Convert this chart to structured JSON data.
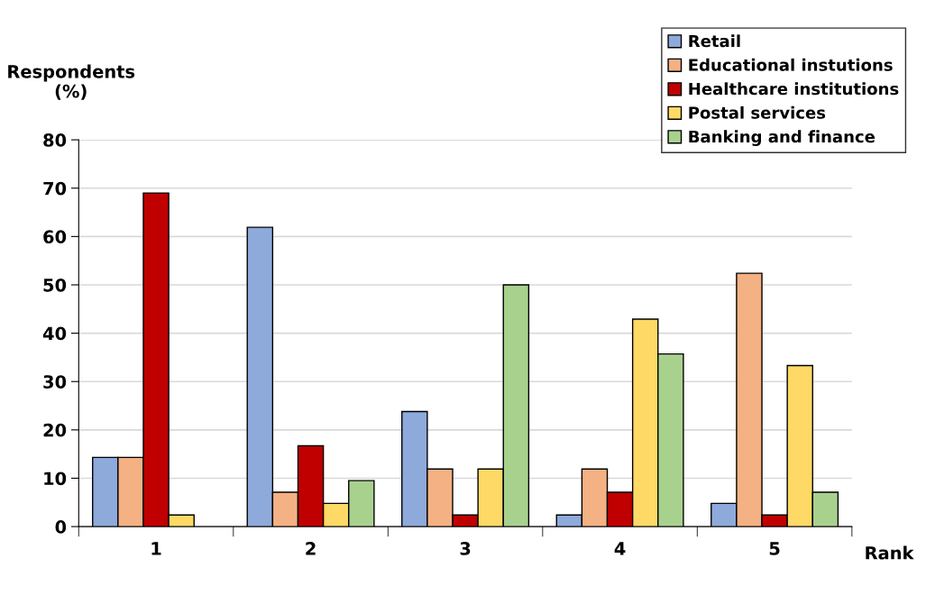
{
  "chart_data": {
    "type": "bar",
    "xlabel": "Rank",
    "ylabel": "Respondents\n(%)",
    "categories": [
      "1",
      "2",
      "3",
      "4",
      "5"
    ],
    "series": [
      {
        "name": "Retail",
        "color": "#8eaadb",
        "values": [
          14.3,
          61.9,
          23.8,
          2.4,
          4.8
        ]
      },
      {
        "name": "Educational instutions",
        "color": "#f4b183",
        "values": [
          14.3,
          7.1,
          11.9,
          11.9,
          52.4
        ]
      },
      {
        "name": "Healthcare institutions",
        "color": "#c00000",
        "values": [
          69.0,
          16.7,
          2.4,
          7.1,
          2.4
        ]
      },
      {
        "name": "Postal services",
        "color": "#ffd966",
        "values": [
          2.4,
          4.8,
          11.9,
          42.9,
          33.3
        ]
      },
      {
        "name": "Banking and finance",
        "color": "#a9d18e",
        "values": [
          null,
          9.5,
          50.0,
          35.7,
          7.1
        ]
      }
    ],
    "ylim": [
      0,
      80
    ],
    "yticks": [
      0,
      10,
      20,
      30,
      40,
      50,
      60,
      70,
      80
    ],
    "grid": "y",
    "legend": "top right"
  }
}
